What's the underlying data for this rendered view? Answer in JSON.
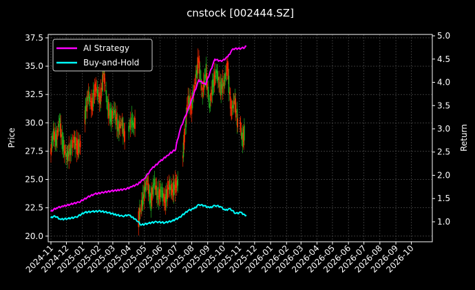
{
  "chart_data": {
    "type": "line",
    "title": "cnstock [002444.SZ]",
    "xlabel": "",
    "ylabel": "Price",
    "y2label": "Return",
    "x_ticks": [
      "2024-11",
      "2024-12",
      "2025-01",
      "2025-02",
      "2025-03",
      "2025-04",
      "2025-05",
      "2025-06",
      "2025-07",
      "2025-08",
      "2025-09",
      "2025-10",
      "2025-11",
      "2025-12",
      "2026-01",
      "2026-02",
      "2026-03",
      "2026-04",
      "2026-05",
      "2026-06",
      "2026-07",
      "2026-08",
      "2026-09",
      "2026-10"
    ],
    "xlim": [
      "2024-11-01",
      "2026-10-31"
    ],
    "ylim": [
      19.5,
      37.8
    ],
    "yticks": [
      "20.0",
      "22.5",
      "25.0",
      "27.5",
      "30.0",
      "32.5",
      "35.0",
      "37.5"
    ],
    "y2lim": [
      0.57,
      5.03
    ],
    "y2ticks": [
      "1.0",
      "1.5",
      "2.0",
      "2.5",
      "3.0",
      "3.5",
      "4.0",
      "4.5",
      "5.0"
    ],
    "grid": true,
    "legend_position": "top-left",
    "colors": {
      "ai": "#ff00ff",
      "bh": "#00ffff",
      "up": "#ff2a00",
      "down": "#1fb01f",
      "background": "#000000",
      "grid": "#5a5a5a"
    },
    "series": [
      {
        "name": "AI Strategy",
        "axis": "right",
        "x": [
          "2024-11-01",
          "2024-11-12",
          "2024-11-25",
          "2024-12-10",
          "2024-12-25",
          "2025-01-10",
          "2025-01-25",
          "2025-02-10",
          "2025-02-25",
          "2025-03-10",
          "2025-03-25",
          "2025-04-07",
          "2025-04-20",
          "2025-05-01",
          "2025-05-15",
          "2025-06-01",
          "2025-06-15",
          "2025-07-01",
          "2025-07-10",
          "2025-07-20",
          "2025-07-28",
          "2025-08-05",
          "2025-08-15",
          "2025-08-28",
          "2025-09-05",
          "2025-09-15",
          "2025-09-28",
          "2025-10-10",
          "2025-10-20",
          "2025-11-05",
          "2025-11-12",
          "2025-11-15"
        ],
        "y": [
          1.22,
          1.3,
          1.33,
          1.38,
          1.42,
          1.52,
          1.6,
          1.63,
          1.66,
          1.68,
          1.7,
          1.75,
          1.82,
          1.93,
          2.13,
          2.3,
          2.43,
          2.56,
          3.0,
          3.28,
          3.5,
          3.75,
          4.05,
          3.95,
          4.2,
          4.5,
          4.45,
          4.55,
          4.72,
          4.73,
          4.75,
          4.78
        ]
      },
      {
        "name": "Buy-and-Hold",
        "axis": "right",
        "x": [
          "2024-11-01",
          "2024-11-08",
          "2024-11-20",
          "2024-12-05",
          "2024-12-20",
          "2025-01-05",
          "2025-01-20",
          "2025-02-05",
          "2025-02-20",
          "2025-03-05",
          "2025-03-20",
          "2025-04-01",
          "2025-04-08",
          "2025-04-15",
          "2025-04-25",
          "2025-05-10",
          "2025-05-25",
          "2025-06-10",
          "2025-06-25",
          "2025-07-10",
          "2025-07-25",
          "2025-08-05",
          "2025-08-15",
          "2025-08-25",
          "2025-09-05",
          "2025-09-15",
          "2025-09-25",
          "2025-10-05",
          "2025-10-15",
          "2025-10-25",
          "2025-11-05",
          "2025-11-12",
          "2025-11-15"
        ],
        "y": [
          1.08,
          1.13,
          1.05,
          1.07,
          1.1,
          1.2,
          1.22,
          1.23,
          1.2,
          1.16,
          1.12,
          1.15,
          1.1,
          1.05,
          0.93,
          0.97,
          1.0,
          0.98,
          1.02,
          1.1,
          1.24,
          1.28,
          1.37,
          1.35,
          1.3,
          1.35,
          1.33,
          1.25,
          1.28,
          1.18,
          1.2,
          1.15,
          1.14
        ]
      }
    ],
    "price_segments": [
      {
        "x": [
          "2024-11-01",
          "2024-11-06",
          "2024-11-12",
          "2024-11-18",
          "2024-11-25",
          "2024-12-02",
          "2024-12-09",
          "2024-12-16",
          "2024-12-23",
          "2024-12-30"
        ],
        "y": [
          27.5,
          29.0,
          28.5,
          30.2,
          28.0,
          27.0,
          27.6,
          28.5,
          27.8,
          28.2
        ]
      },
      {
        "x": [
          "2025-01-06",
          "2025-01-13",
          "2025-01-20",
          "2025-01-27",
          "2025-02-05",
          "2025-02-12",
          "2025-02-19",
          "2025-02-26",
          "2025-03-05",
          "2025-03-12",
          "2025-03-19",
          "2025-03-26"
        ],
        "y": [
          30.5,
          32.5,
          31.5,
          33.2,
          32.0,
          34.5,
          31.5,
          30.5,
          31.0,
          29.5,
          30.0,
          28.5
        ]
      },
      {
        "x": [
          "2025-04-01",
          "2025-04-07",
          "2025-04-10",
          "2025-04-15"
        ],
        "y": [
          29.5,
          30.2,
          29.8,
          30.0
        ]
      },
      {
        "x": [
          "2025-04-20",
          "2025-04-25",
          "2025-04-30",
          "2025-05-07",
          "2025-05-14",
          "2025-05-21",
          "2025-05-28",
          "2025-06-04",
          "2025-06-11",
          "2025-06-18",
          "2025-06-25",
          "2025-07-02",
          "2025-07-07"
        ],
        "y": [
          21.5,
          22.5,
          23.5,
          25.0,
          23.0,
          24.8,
          23.5,
          24.0,
          23.0,
          24.5,
          24.0,
          24.5,
          24.8
        ]
      },
      {
        "x": [
          "2025-07-15",
          "2025-07-20",
          "2025-07-25",
          "2025-08-01",
          "2025-08-08",
          "2025-08-15",
          "2025-08-22",
          "2025-08-29",
          "2025-09-05",
          "2025-09-12",
          "2025-09-19",
          "2025-09-26",
          "2025-10-03",
          "2025-10-10",
          "2025-10-17",
          "2025-10-24",
          "2025-10-31"
        ],
        "y": [
          27.0,
          29.5,
          32.0,
          31.5,
          33.5,
          35.5,
          32.5,
          34.5,
          31.5,
          33.5,
          34.5,
          33.0,
          33.5,
          35.0,
          31.0,
          32.0,
          29.5
        ]
      },
      {
        "x": [
          "2025-11-03",
          "2025-11-08",
          "2025-11-13"
        ],
        "y": [
          30.0,
          28.5,
          29.3
        ]
      }
    ]
  }
}
